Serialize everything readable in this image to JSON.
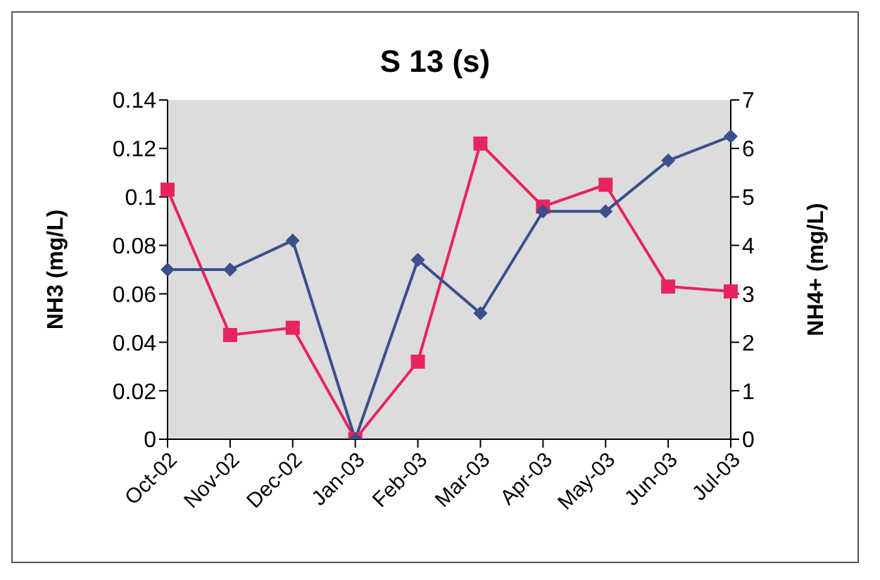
{
  "chart_data": {
    "type": "line",
    "title": "S 13 (s)",
    "ylabel": "NH3 (mg/L)",
    "y2label": "NH4+ (mg/L)",
    "categories": [
      "Oct-02",
      "Nov-02",
      "Dec-02",
      "Jan-03",
      "Feb-03",
      "Mar-03",
      "Apr-03",
      "May-03",
      "Jun-03",
      "Jul-03"
    ],
    "series": [
      {
        "color": "#3a4f8c",
        "marker": "diamond",
        "values": [
          0.07,
          0.07,
          0.082,
          0,
          0.074,
          0.052,
          0.094,
          0.094,
          0.115,
          0.125
        ]
      },
      {
        "color": "#e8245f",
        "marker": "square",
        "axis": "y2",
        "values": [
          5.15,
          2.15,
          2.3,
          0,
          1.6,
          6.1,
          4.8,
          5.25,
          3.15,
          3.05
        ]
      }
    ],
    "ylim": [
      0,
      0.14
    ],
    "yticks": [
      0,
      0.02,
      0.04,
      0.06,
      0.08,
      0.1,
      0.12,
      0.14
    ],
    "y2lim": [
      0,
      7
    ],
    "y2ticks": [
      0,
      1,
      2,
      3,
      4,
      5,
      6,
      7
    ]
  }
}
